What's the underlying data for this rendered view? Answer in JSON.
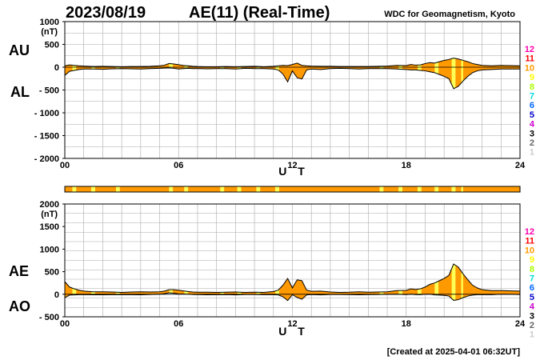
{
  "header": {
    "date": "2023/08/19",
    "title": "AE(11) (Real-Time)",
    "source": "WDC for Geomagnetism, Kyoto"
  },
  "footer": {
    "created": "[Created at 2025-04-01 06:32UT]"
  },
  "colors": {
    "fill_orange": "#ff9900",
    "fill_yellow": "#ffff55",
    "grid": "#aaaaaa",
    "line": "#000000"
  },
  "legend": {
    "labels": [
      "12",
      "11",
      "10",
      "9",
      "8",
      "7",
      "6",
      "5",
      "4",
      "3",
      "2",
      "1"
    ],
    "colors": [
      "#ff00aa",
      "#ff0000",
      "#ff9900",
      "#ffff00",
      "#aaff00",
      "#00dddd",
      "#0066ff",
      "#0000cc",
      "#cc00cc",
      "#000000",
      "#666666",
      "#cccccc"
    ]
  },
  "station_strip": {
    "segments": [
      {
        "from": 0.0,
        "to": 0.4,
        "count": "10"
      },
      {
        "from": 0.4,
        "to": 0.6,
        "count": "9"
      },
      {
        "from": 0.6,
        "to": 1.4,
        "count": "10"
      },
      {
        "from": 1.4,
        "to": 1.6,
        "count": "9"
      },
      {
        "from": 1.6,
        "to": 2.7,
        "count": "10"
      },
      {
        "from": 2.7,
        "to": 2.9,
        "count": "9"
      },
      {
        "from": 2.9,
        "to": 5.5,
        "count": "10"
      },
      {
        "from": 5.5,
        "to": 5.7,
        "count": "9"
      },
      {
        "from": 5.7,
        "to": 6.3,
        "count": "10"
      },
      {
        "from": 6.3,
        "to": 6.5,
        "count": "9"
      },
      {
        "from": 6.5,
        "to": 8.2,
        "count": "10"
      },
      {
        "from": 8.2,
        "to": 8.4,
        "count": "9"
      },
      {
        "from": 8.4,
        "to": 9.1,
        "count": "10"
      },
      {
        "from": 9.1,
        "to": 9.3,
        "count": "9"
      },
      {
        "from": 9.3,
        "to": 10.1,
        "count": "10"
      },
      {
        "from": 10.1,
        "to": 10.3,
        "count": "9"
      },
      {
        "from": 10.3,
        "to": 11.1,
        "count": "10"
      },
      {
        "from": 11.1,
        "to": 11.3,
        "count": "9"
      },
      {
        "from": 11.3,
        "to": 16.6,
        "count": "10"
      },
      {
        "from": 16.6,
        "to": 16.8,
        "count": "9"
      },
      {
        "from": 16.8,
        "to": 17.6,
        "count": "10"
      },
      {
        "from": 17.6,
        "to": 17.8,
        "count": "9"
      },
      {
        "from": 17.8,
        "to": 18.6,
        "count": "10"
      },
      {
        "from": 18.6,
        "to": 18.8,
        "count": "9"
      },
      {
        "from": 18.8,
        "to": 19.5,
        "count": "10"
      },
      {
        "from": 19.5,
        "to": 19.7,
        "count": "9"
      },
      {
        "from": 19.7,
        "to": 20.4,
        "count": "10"
      },
      {
        "from": 20.4,
        "to": 20.6,
        "count": "9"
      },
      {
        "from": 20.6,
        "to": 20.9,
        "count": "10"
      },
      {
        "from": 20.9,
        "to": 21.0,
        "count": "9"
      },
      {
        "from": 21.0,
        "to": 24.0,
        "count": "10"
      }
    ]
  },
  "chart_data": [
    {
      "type": "area",
      "panel": "AU/AL",
      "side_labels": [
        "AU",
        "AL"
      ],
      "unit_label": "(nT)",
      "xlabel": "U T",
      "xlim": [
        0,
        24
      ],
      "ylim": [
        -2000,
        1000
      ],
      "xticks": [
        "00",
        "06",
        "12",
        "18",
        "24"
      ],
      "xtick_values": [
        0,
        6,
        12,
        18,
        24
      ],
      "yticks": [
        "1000",
        "500",
        "0",
        "- 500",
        "- 1000",
        "- 1500",
        "- 2000"
      ],
      "ytick_values": [
        1000,
        500,
        0,
        -500,
        -1000,
        -1500,
        -2000
      ],
      "grid": true,
      "series": [
        {
          "name": "AU",
          "x": [
            0,
            0.25,
            0.5,
            0.75,
            1,
            1.5,
            2,
            2.5,
            3,
            3.5,
            4,
            4.5,
            5,
            5.25,
            5.5,
            5.75,
            6,
            6.25,
            6.5,
            6.75,
            7,
            7.5,
            8,
            8.5,
            9,
            9.5,
            10,
            10.5,
            11,
            11.25,
            11.5,
            11.75,
            12,
            12.25,
            12.5,
            12.75,
            13,
            13.5,
            14,
            14.5,
            15,
            15.5,
            16,
            16.5,
            17,
            17.5,
            18,
            18.25,
            18.5,
            18.75,
            19,
            19.25,
            19.5,
            19.75,
            20,
            20.25,
            20.5,
            20.75,
            21,
            21.25,
            21.5,
            21.75,
            22,
            22.5,
            23,
            23.5,
            24
          ],
          "values": [
            30,
            50,
            40,
            30,
            25,
            15,
            20,
            15,
            10,
            15,
            15,
            20,
            30,
            45,
            80,
            70,
            55,
            40,
            30,
            20,
            15,
            10,
            10,
            15,
            10,
            15,
            20,
            10,
            20,
            30,
            40,
            35,
            60,
            90,
            40,
            30,
            25,
            20,
            20,
            15,
            15,
            15,
            15,
            20,
            25,
            40,
            35,
            60,
            45,
            50,
            80,
            100,
            90,
            120,
            150,
            170,
            200,
            180,
            150,
            120,
            80,
            60,
            40,
            30,
            40,
            35,
            30
          ]
        },
        {
          "name": "AL",
          "x": [
            0,
            0.25,
            0.5,
            0.75,
            1,
            1.5,
            2,
            2.5,
            3,
            3.5,
            4,
            4.5,
            5,
            5.25,
            5.5,
            5.75,
            6,
            6.25,
            6.5,
            6.75,
            7,
            7.5,
            8,
            8.5,
            9,
            9.5,
            10,
            10.5,
            11,
            11.25,
            11.5,
            11.75,
            12,
            12.25,
            12.5,
            12.75,
            13,
            13.5,
            14,
            14.5,
            15,
            15.5,
            16,
            16.5,
            17,
            17.5,
            18,
            18.25,
            18.5,
            18.75,
            19,
            19.25,
            19.5,
            19.75,
            20,
            20.25,
            20.5,
            20.75,
            21,
            21.25,
            21.5,
            21.75,
            22,
            22.5,
            23,
            23.5,
            24
          ],
          "values": [
            -180,
            -90,
            -70,
            -50,
            -40,
            -40,
            -45,
            -35,
            -30,
            -35,
            -40,
            -30,
            -25,
            -20,
            -15,
            -25,
            -40,
            -30,
            -25,
            -30,
            -30,
            -35,
            -30,
            -30,
            -40,
            -25,
            -30,
            -30,
            -40,
            -60,
            -150,
            -320,
            -80,
            -230,
            -260,
            -60,
            -40,
            -50,
            -30,
            -25,
            -30,
            -40,
            -30,
            -30,
            -30,
            -40,
            -50,
            -60,
            -60,
            -70,
            -80,
            -100,
            -120,
            -160,
            -200,
            -250,
            -470,
            -420,
            -300,
            -200,
            -120,
            -80,
            -60,
            -50,
            -40,
            -40,
            -40
          ]
        }
      ]
    },
    {
      "type": "area",
      "panel": "AE/AO",
      "side_labels": [
        "AE",
        "AO"
      ],
      "unit_label": "(nT)",
      "xlabel": "U T",
      "xlim": [
        0,
        24
      ],
      "ylim": [
        -500,
        2000
      ],
      "xticks": [
        "00",
        "06",
        "12",
        "18",
        "24"
      ],
      "xtick_values": [
        0,
        6,
        12,
        18,
        24
      ],
      "yticks": [
        "2000",
        "1500",
        "1000",
        "500",
        "0",
        "- 500"
      ],
      "ytick_values": [
        2000,
        1500,
        1000,
        500,
        0,
        -500
      ],
      "grid": true,
      "series": [
        {
          "name": "AE",
          "x": [
            0,
            0.25,
            0.5,
            0.75,
            1,
            1.5,
            2,
            2.5,
            3,
            3.5,
            4,
            4.5,
            5,
            5.25,
            5.5,
            5.75,
            6,
            6.25,
            6.5,
            6.75,
            7,
            7.5,
            8,
            8.5,
            9,
            9.5,
            10,
            10.5,
            11,
            11.25,
            11.5,
            11.75,
            12,
            12.25,
            12.5,
            12.75,
            13,
            13.5,
            14,
            14.5,
            15,
            15.5,
            16,
            16.5,
            17,
            17.5,
            18,
            18.25,
            18.5,
            18.75,
            19,
            19.25,
            19.5,
            19.75,
            20,
            20.25,
            20.5,
            20.75,
            21,
            21.25,
            21.5,
            21.75,
            22,
            22.5,
            23,
            23.5,
            24
          ],
          "values": [
            280,
            160,
            120,
            90,
            70,
            55,
            55,
            50,
            40,
            50,
            55,
            50,
            55,
            70,
            100,
            100,
            90,
            75,
            60,
            50,
            45,
            45,
            40,
            45,
            50,
            40,
            45,
            40,
            60,
            90,
            200,
            350,
            140,
            320,
            300,
            90,
            65,
            70,
            50,
            40,
            45,
            55,
            45,
            50,
            55,
            80,
            85,
            120,
            105,
            120,
            160,
            220,
            250,
            300,
            350,
            420,
            670,
            600,
            450,
            320,
            200,
            140,
            100,
            80,
            80,
            75,
            70
          ]
        },
        {
          "name": "AO",
          "x": [
            0,
            0.25,
            0.5,
            0.75,
            1,
            1.5,
            2,
            2.5,
            3,
            3.5,
            4,
            4.5,
            5,
            5.25,
            5.5,
            5.75,
            6,
            6.25,
            6.5,
            6.75,
            7,
            7.5,
            8,
            8.5,
            9,
            9.5,
            10,
            10.5,
            11,
            11.25,
            11.5,
            11.75,
            12,
            12.25,
            12.5,
            12.75,
            13,
            13.5,
            14,
            14.5,
            15,
            15.5,
            16,
            16.5,
            17,
            17.5,
            18,
            18.25,
            18.5,
            18.75,
            19,
            19.25,
            19.5,
            19.75,
            20,
            20.25,
            20.5,
            20.75,
            21,
            21.25,
            21.5,
            21.75,
            22,
            22.5,
            23,
            23.5,
            24
          ],
          "values": [
            -75,
            -20,
            -15,
            -10,
            -8,
            -12,
            -12,
            -10,
            -10,
            -10,
            -12,
            -5,
            2,
            12,
            32,
            22,
            8,
            5,
            2,
            -5,
            -8,
            -12,
            -10,
            -8,
            -15,
            -5,
            -5,
            -10,
            -10,
            -15,
            -55,
            -140,
            -10,
            -70,
            -110,
            -15,
            -8,
            -15,
            -5,
            -5,
            -8,
            -12,
            -8,
            -5,
            -2,
            0,
            -8,
            0,
            -8,
            -10,
            0,
            0,
            -15,
            -20,
            -25,
            -40,
            -135,
            -120,
            -75,
            -40,
            -20,
            -10,
            -10,
            -10,
            0,
            -2,
            -5
          ]
        }
      ]
    }
  ]
}
